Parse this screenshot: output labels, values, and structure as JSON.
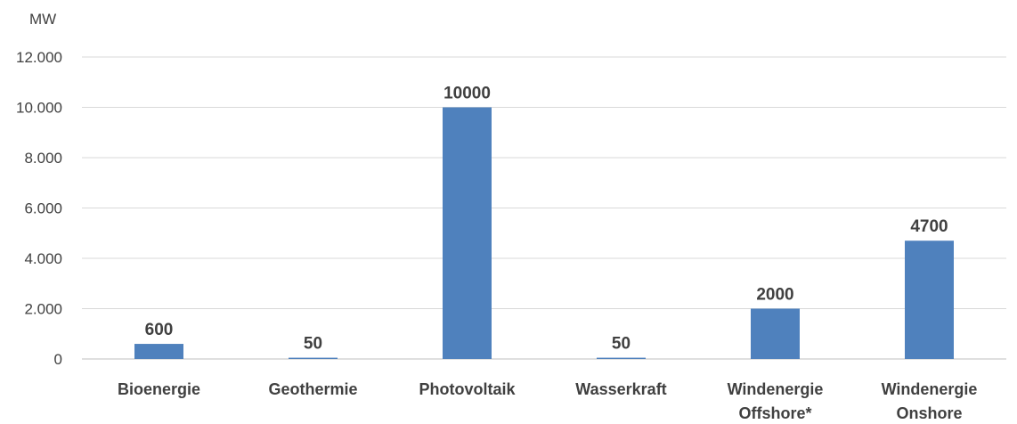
{
  "chart_data": {
    "type": "bar",
    "ylabel": "MW",
    "ylim": [
      0,
      12000
    ],
    "yticks": [
      0,
      2000,
      4000,
      6000,
      8000,
      10000,
      12000
    ],
    "ytick_labels": [
      "0",
      "2.000",
      "4.000",
      "6.000",
      "8.000",
      "10.000",
      "12.000"
    ],
    "categories": [
      [
        "Bioenergie"
      ],
      [
        "Geothermie"
      ],
      [
        "Photovoltaik"
      ],
      [
        "Wasserkraft"
      ],
      [
        "Windenergie",
        "Offshore*"
      ],
      [
        "Windenergie",
        "Onshore"
      ]
    ],
    "values": [
      600,
      50,
      10000,
      50,
      2000,
      4700
    ],
    "data_labels": [
      "600",
      "50",
      "10000",
      "50",
      "2000",
      "4700"
    ],
    "bar_color": "#4f81bd",
    "grid": true,
    "legend": "none"
  }
}
